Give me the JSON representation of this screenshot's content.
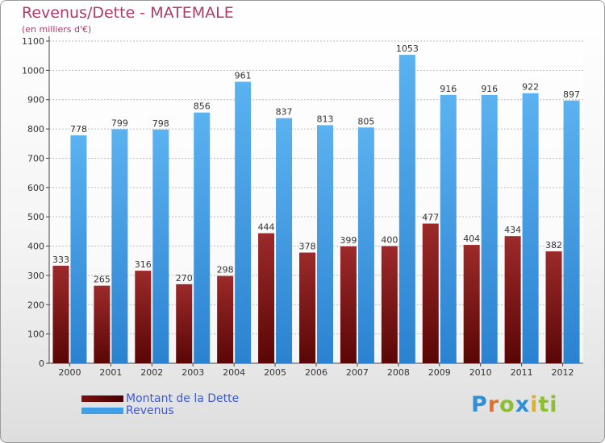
{
  "chart_data": {
    "type": "bar",
    "title": "Revenus/Dette - MATEMALE",
    "subtitle": "(en milliers d'€)",
    "categories": [
      "2000",
      "2001",
      "2002",
      "2003",
      "2004",
      "2005",
      "2006",
      "2007",
      "2008",
      "2009",
      "2010",
      "2011",
      "2012"
    ],
    "series": [
      {
        "name": "Montant de la Dette",
        "color": "#7a1010",
        "values": [
          333,
          265,
          316,
          270,
          298,
          444,
          378,
          399,
          400,
          477,
          404,
          434,
          382
        ]
      },
      {
        "name": "Revenus",
        "color": "#3f9ee6",
        "values": [
          778,
          799,
          798,
          856,
          961,
          837,
          813,
          805,
          1053,
          916,
          916,
          922,
          897
        ]
      }
    ],
    "ylim": [
      0,
      1100
    ],
    "yticks": [
      0,
      100,
      200,
      300,
      400,
      500,
      600,
      700,
      800,
      900,
      1000,
      1100
    ],
    "grid": true,
    "legend_position": "bottom-left"
  },
  "logo": {
    "text": "Proxiti",
    "letters": [
      "P",
      "r",
      "o",
      "x",
      "i",
      "ti"
    ]
  }
}
